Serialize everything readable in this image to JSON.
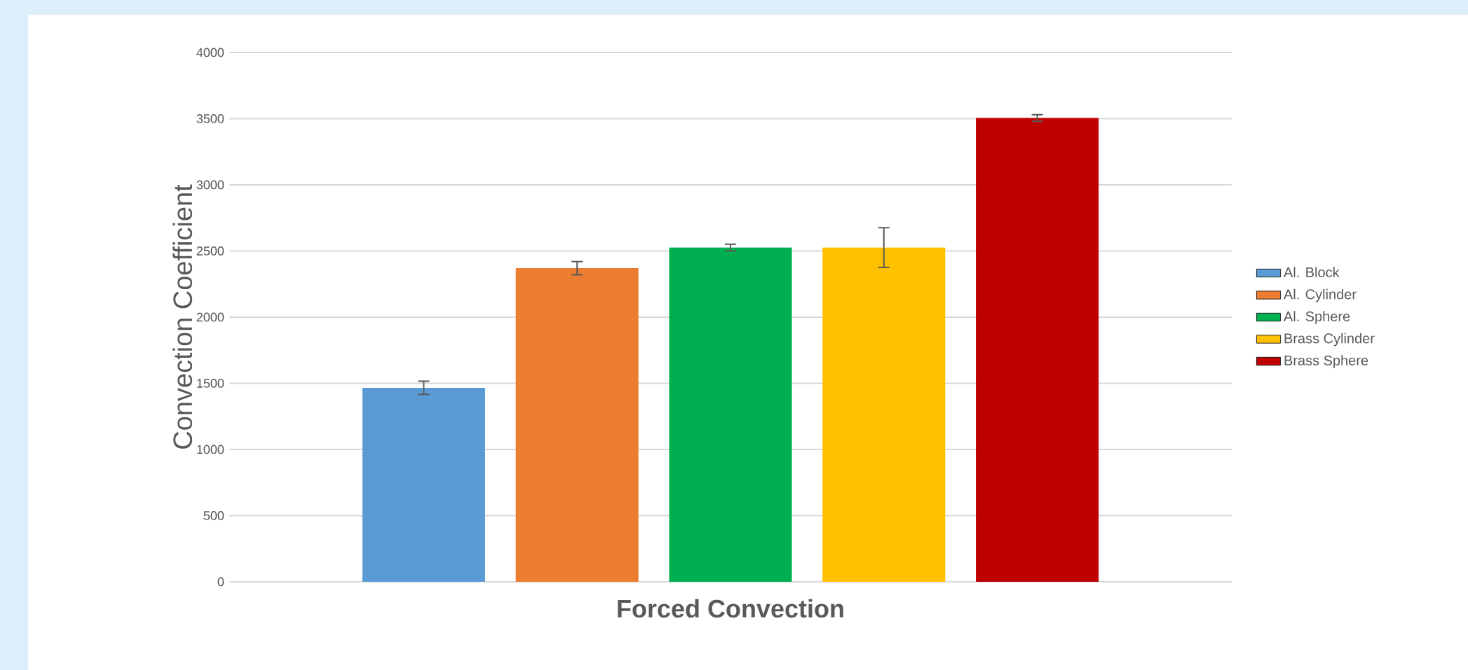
{
  "chart_data": {
    "type": "bar",
    "xlabel": "Forced Convection",
    "ylabel": "Convection Coefficient",
    "categories": [
      null
    ],
    "series": [
      {
        "name": "Al. Block",
        "color": "#5b9bd5",
        "values": [
          1466
        ],
        "errors": [
          50
        ]
      },
      {
        "name": "Al. Cylinder",
        "color": "#ed7d31",
        "values": [
          2370
        ],
        "errors": [
          50
        ]
      },
      {
        "name": "Al. Sphere",
        "color": "#00b050",
        "values": [
          2526
        ],
        "errors": [
          25
        ]
      },
      {
        "name": "Brass Cylinder",
        "color": "#ffc000",
        "values": [
          2526
        ],
        "errors": [
          150
        ]
      },
      {
        "name": "Brass Sphere",
        "color": "#c00000",
        "values": [
          3505
        ],
        "errors": [
          25
        ]
      }
    ],
    "ylim": [
      0,
      4000
    ],
    "yticks": [
      0,
      500,
      1000,
      1500,
      2000,
      2500,
      3000,
      3500,
      4000
    ],
    "grid": "y",
    "legend": "right"
  }
}
